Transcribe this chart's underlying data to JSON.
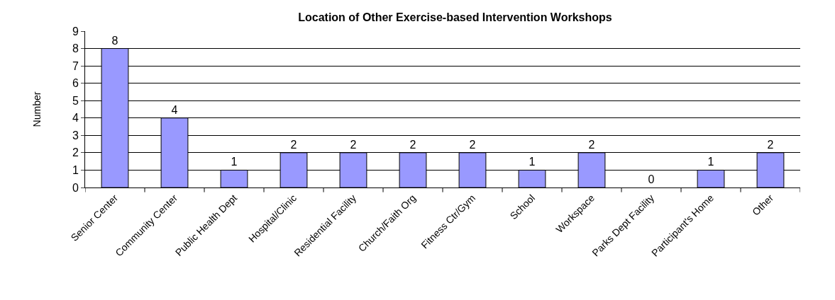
{
  "chart_data": {
    "type": "bar",
    "title": "Location of Other Exercise-based Intervention Workshops",
    "ylabel": "Number",
    "categories": [
      "Senior Center",
      "Community Center",
      "Public Health Dept",
      "Hospital/Clinic",
      "Residential Facility",
      "Church/Faith Org",
      "Fitness Ctr/Gym",
      "School",
      "Workspace",
      "Parks Dept Facility",
      "Participant's Home",
      "Other"
    ],
    "values": [
      8,
      4,
      1,
      2,
      2,
      2,
      2,
      1,
      2,
      0,
      1,
      2
    ],
    "color": "#9999ff",
    "ylim": [
      0,
      9
    ],
    "yticks": [
      0,
      1,
      2,
      3,
      4,
      5,
      6,
      7,
      8,
      9
    ],
    "grid": "y",
    "data_labels": true
  }
}
